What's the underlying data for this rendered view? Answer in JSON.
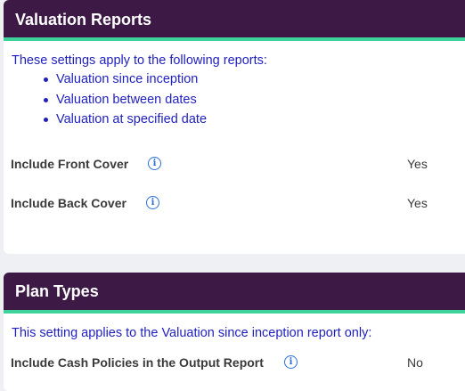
{
  "valuation_reports": {
    "title": "Valuation Reports",
    "intro": "These settings apply to the following reports:",
    "reports": [
      "Valuation since inception",
      "Valuation between dates",
      "Valuation at specified date"
    ],
    "settings": [
      {
        "label": "Include Front Cover",
        "icon": "info-icon",
        "value": "Yes"
      },
      {
        "label": "Include Back Cover",
        "icon": "info-icon",
        "value": "Yes"
      }
    ]
  },
  "plan_types": {
    "title": "Plan Types",
    "intro": "This setting applies to the Valuation since inception report only:",
    "settings": [
      {
        "label": "Include Cash Policies in the Output Report",
        "icon": "info-icon",
        "value": "No"
      }
    ]
  },
  "colors": {
    "header_bg": "#3d1a45",
    "header_accent": "#3ed39a",
    "link_text": "#1f1fbf",
    "info_icon": "#2b6fd6"
  }
}
